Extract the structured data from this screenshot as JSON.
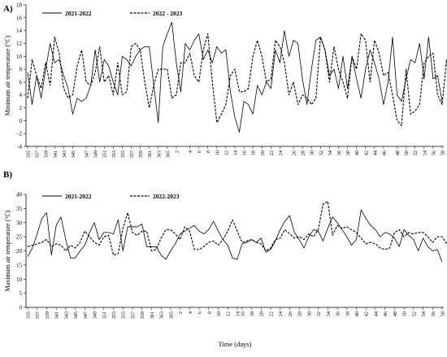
{
  "chart_data": [
    {
      "type": "line",
      "panel_label": "A)",
      "ylabel": "Minimum air temperature (°C)",
      "xlabel": "",
      "ylim": [
        -4,
        18
      ],
      "yticks": [
        -4,
        -2,
        0,
        2,
        4,
        6,
        8,
        10,
        12,
        14,
        16,
        18
      ],
      "x_tick_labels": [
        "335",
        "337",
        "339",
        "341",
        "343",
        "345",
        "347",
        "349",
        "351",
        "353",
        "355",
        "357",
        "359",
        "361",
        "363",
        "365",
        "2",
        "4",
        "6",
        "8",
        "10",
        "12",
        "14",
        "16",
        "18",
        "20",
        "22",
        "24",
        "26",
        "28",
        "30",
        "32",
        "34",
        "36",
        "38",
        "40",
        "42",
        "44",
        "46",
        "48",
        "50",
        "52",
        "54",
        "56",
        "58"
      ],
      "legend_position": "top-left",
      "grid": false,
      "series": [
        {
          "name": "2021-2022",
          "style": "solid",
          "values": [
            7.5,
            2.5,
            7,
            3.5,
            8,
            12,
            9,
            9.5,
            7,
            5,
            1,
            3.5,
            3,
            3.5,
            5.5,
            11,
            6,
            9.5,
            8.5,
            6,
            4,
            10,
            9.5,
            8.5,
            10,
            11,
            11.5,
            11.5,
            5.5,
            -0.3,
            11.5,
            13.5,
            15.3,
            9,
            4.5,
            12,
            11,
            12.5,
            13.5,
            9.5,
            11,
            9,
            11.5,
            10.5,
            11,
            4.5,
            0.5,
            -1.8,
            3,
            2.5,
            1,
            5.5,
            4,
            6,
            5,
            11,
            9,
            14,
            10,
            12.5,
            12,
            6.5,
            2.5,
            8,
            12.5,
            13,
            11,
            7,
            8,
            5,
            10,
            5,
            10,
            6.5,
            3.5,
            8,
            11,
            9,
            6.5,
            2.5,
            6,
            13,
            4,
            3,
            6.5,
            9.5,
            9,
            12,
            6.5,
            13,
            6.5,
            7,
            3
          ]
        },
        {
          "name": "2022 - 2023",
          "style": "dashed",
          "values": [
            3.5,
            9.5,
            7,
            5,
            9,
            5.5,
            13,
            10.5,
            5,
            3.5,
            4,
            8.5,
            11,
            6,
            5.5,
            7.5,
            11.5,
            6,
            7,
            4,
            9,
            4,
            4.5,
            11.5,
            12,
            11,
            6,
            2,
            5.5,
            8,
            8,
            8,
            3.5,
            4,
            9,
            9,
            10.5,
            7,
            6,
            11,
            13.5,
            6,
            -0.3,
            1,
            2.5,
            7,
            8,
            4.5,
            4.5,
            5,
            10,
            12.5,
            10,
            6,
            6.5,
            12.5,
            11.5,
            9,
            4,
            6,
            2.5,
            4,
            3.5,
            2.5,
            3.5,
            13,
            11,
            6,
            11.5,
            8,
            6,
            3.5,
            10,
            8,
            13.5,
            12.5,
            6,
            12.5,
            10.5,
            7,
            7.5,
            4,
            0,
            -0.8,
            8,
            1,
            1.5,
            2.5,
            9,
            10,
            10.5,
            4,
            2.5,
            9.5,
            2.5,
            2.5,
            11,
            7.5
          ]
        }
      ]
    },
    {
      "type": "line",
      "panel_label": "B)",
      "ylabel": "Maximum air temperature (°C)",
      "xlabel": "Time (days)",
      "ylim": [
        0,
        40
      ],
      "yticks": [
        0,
        5,
        10,
        15,
        20,
        25,
        30,
        35,
        40
      ],
      "x_tick_labels": [
        "335",
        "337",
        "339",
        "341",
        "343",
        "345",
        "347",
        "349",
        "351",
        "353",
        "355",
        "357",
        "359",
        "361",
        "363",
        "365",
        "2",
        "4",
        "6",
        "8",
        "10",
        "12",
        "14",
        "16",
        "18",
        "20",
        "22",
        "24",
        "26",
        "28",
        "30",
        "32",
        "34",
        "36",
        "38",
        "40",
        "42",
        "44",
        "46",
        "48",
        "50",
        "52",
        "54",
        "56",
        "58"
      ],
      "legend_position": "top-left",
      "grid": false,
      "series": [
        {
          "name": "2021-2022",
          "style": "solid",
          "values": [
            18,
            21,
            26,
            31.5,
            33.5,
            18.5,
            29,
            32,
            24,
            17.5,
            17.5,
            20,
            22,
            26.5,
            30,
            24,
            26.5,
            26.5,
            26,
            31,
            20,
            28.5,
            28.5,
            28.5,
            29.5,
            21.5,
            21.5,
            21.5,
            18.5,
            17,
            20,
            22.5,
            26,
            27,
            28,
            29,
            27,
            26,
            27.5,
            30.5,
            27,
            24,
            22,
            17.5,
            17,
            22.5,
            23,
            24,
            23,
            24.5,
            19.5,
            20.5,
            23.5,
            27.5,
            30.5,
            32.5,
            26.5,
            24,
            21,
            25,
            27.5,
            27,
            23.5,
            28,
            32,
            30,
            27.5,
            25,
            22,
            24,
            34.5,
            31.5,
            29,
            27.5,
            25,
            26.5,
            26,
            24.5,
            21.5,
            27.5,
            25.5,
            24,
            20,
            24.5,
            21.5,
            20,
            20.5,
            16
          ]
        },
        {
          "name": "2022-2023",
          "style": "dashed",
          "values": [
            21.5,
            22,
            22.5,
            23,
            24,
            21.5,
            22.5,
            22,
            20,
            22,
            21,
            23,
            27,
            25,
            23,
            22,
            25,
            25.5,
            18.5,
            19,
            28,
            33.5,
            26.5,
            25.5,
            27,
            27,
            20,
            20.5,
            24.5,
            27.5,
            27.5,
            26,
            24,
            28.5,
            27,
            20.5,
            20.5,
            21.5,
            23,
            23.5,
            22,
            24,
            27,
            31,
            27,
            23,
            23.5,
            24,
            23,
            22.5,
            20,
            21,
            24,
            24.5,
            27.5,
            26,
            24.5,
            25,
            24,
            26,
            25,
            27.5,
            36.5,
            37.5,
            25.5,
            29,
            28,
            28.5,
            27.5,
            26.5,
            24.5,
            22.5,
            23,
            22.5,
            21,
            20.5,
            21,
            26.5,
            27.5,
            25,
            26.5,
            26,
            26.5,
            26.5,
            25,
            23,
            25,
            25,
            22.5
          ]
        }
      ]
    }
  ]
}
